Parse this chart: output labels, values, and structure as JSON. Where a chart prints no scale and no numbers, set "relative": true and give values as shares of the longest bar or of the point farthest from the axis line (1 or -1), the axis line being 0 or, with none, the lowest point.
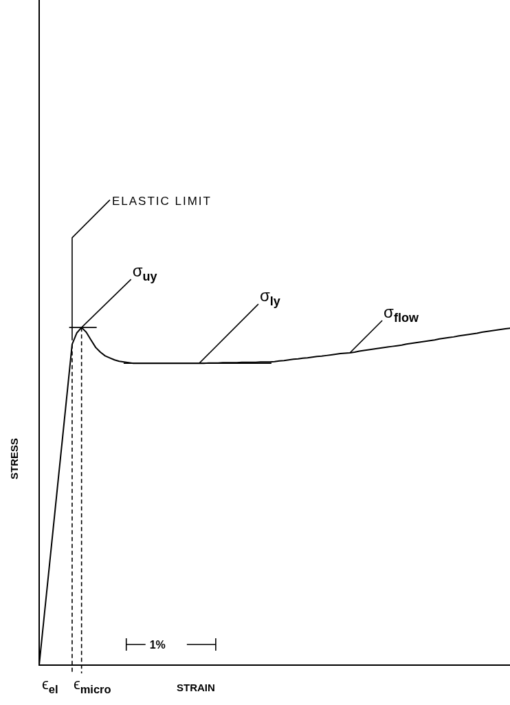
{
  "chart_data": {
    "type": "line",
    "relative": true,
    "xlabel": "STRAIN",
    "ylabel": "STRESS",
    "tick_labels": false,
    "categories": [
      null,
      null,
      null,
      null,
      null,
      null,
      null,
      null,
      null,
      null,
      null,
      null,
      null,
      null,
      null,
      null,
      null,
      null,
      null,
      null,
      null,
      null,
      null,
      null,
      null,
      null,
      null,
      null,
      null,
      null,
      null,
      null,
      null,
      null,
      null,
      null,
      null,
      null,
      null,
      null,
      null,
      null,
      null,
      null,
      null,
      null,
      null,
      null,
      null,
      null,
      null,
      null,
      null,
      null,
      null,
      null,
      null,
      null,
      null,
      null,
      null,
      null,
      null,
      null,
      null,
      null,
      null,
      null,
      null,
      null,
      null,
      null,
      null,
      null,
      null,
      null,
      null,
      null,
      null,
      null,
      null,
      null,
      null,
      null,
      null,
      null,
      null,
      null,
      null,
      null,
      null,
      null,
      null,
      null,
      null,
      null,
      null,
      null,
      null,
      null,
      null
    ],
    "series": [
      {
        "color": "#000000",
        "values": [
          0,
          0.136,
          0.271,
          0.407,
          0.543,
          0.678,
          0.814,
          0.95,
          0.984,
          1,
          0.986,
          0.963,
          0.941,
          0.927,
          0.916,
          0.91,
          0.904,
          0.9,
          0.898,
          0.896,
          0.894,
          0.894,
          0.894,
          0.894,
          0.894,
          0.894,
          0.894,
          0.894,
          0.894,
          0.894,
          0.894,
          0.894,
          0.894,
          0.894,
          0.894,
          0.894,
          0.895,
          0.895,
          0.895,
          0.896,
          0.896,
          0.896,
          0.896,
          0.897,
          0.897,
          0.897,
          0.897,
          0.898,
          0.898,
          0.898,
          0.899,
          0.901,
          0.902,
          0.904,
          0.906,
          0.907,
          0.909,
          0.91,
          0.912,
          0.914,
          0.915,
          0.917,
          0.919,
          0.921,
          0.923,
          0.924,
          0.925,
          0.927,
          0.93,
          0.932,
          0.934,
          0.936,
          0.938,
          0.94,
          0.942,
          0.944,
          0.946,
          0.948,
          0.951,
          0.953,
          0.955,
          0.957,
          0.959,
          0.961,
          0.963,
          0.966,
          0.968,
          0.97,
          0.972,
          0.975,
          0.977,
          0.979,
          0.981,
          0.983,
          0.986,
          0.988,
          0.99,
          0.992,
          0.994,
          0.996,
          0.998
        ]
      }
    ],
    "annotations": [
      "ELASTIC LIMIT",
      "σ$_{uy}$",
      "σ$_{ly}$",
      "σ$_{flow}$",
      "ϵ$_{el}$",
      "ϵ$_{micro}$",
      "1%"
    ]
  }
}
